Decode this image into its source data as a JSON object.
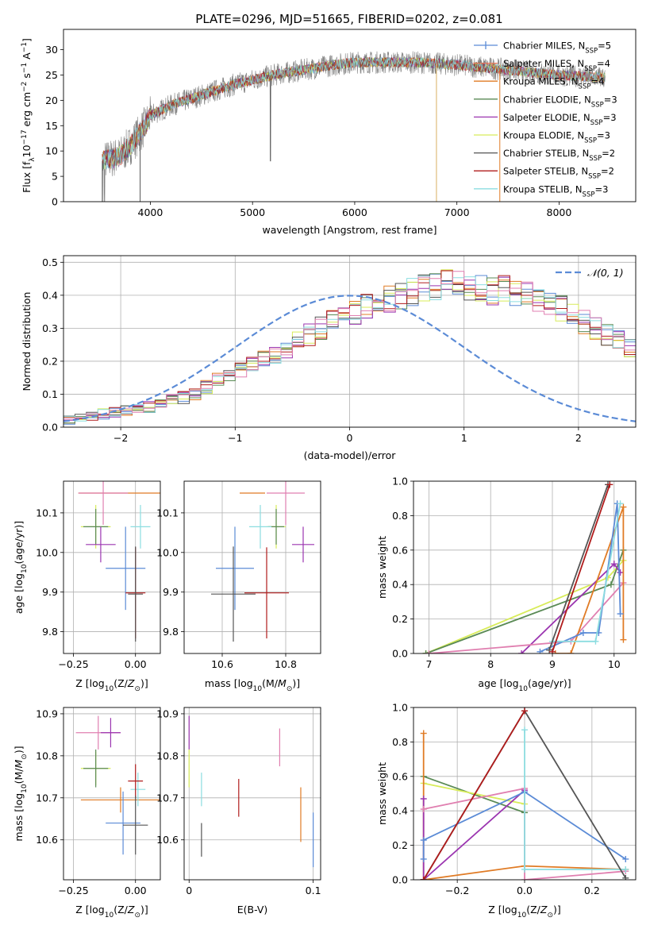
{
  "figure_title": "PLATE=0296, MJD=51665, FIBERID=0202, z=0.081",
  "colors": {
    "chabrier_miles": "#5b8bd6",
    "salpeter_miles": "#e87a5e",
    "kroupa_miles": "#e07b25",
    "chabrier_elodie": "#5a8a55",
    "salpeter_elodie": "#9b35b0",
    "kroupa_elodie": "#d8ec5a",
    "chabrier_stelib": "#555555",
    "salpeter_stelib": "#b01c1c",
    "kroupa_stelib": "#8cdde0",
    "pink": "#e07fb0",
    "gaussian": "#5b8bd6",
    "data": "#808080"
  },
  "chart_data": [
    {
      "type": "line",
      "id": "spectrum",
      "xlabel": "wavelength [Angstrom, rest frame]",
      "ylabel": "Flux [f_λ10^-17 erg cm^-2 s^-1 A^-1]",
      "xlim": [
        3150,
        8750
      ],
      "ylim": [
        0,
        34
      ],
      "xticks": [
        4000,
        5000,
        6000,
        7000,
        8000
      ],
      "yticks": [
        0,
        5,
        10,
        15,
        20,
        25,
        30
      ],
      "grid": false,
      "legend_position": "right",
      "legend": [
        {
          "label": "Chabrier MILES, N",
          "sub": "SSP",
          "n": "=5",
          "color": "#5b8bd6",
          "marker": true
        },
        {
          "label": "Salpeter MILES, N",
          "sub": "SSP",
          "n": "=4",
          "color": "#e87a5e",
          "marker": false
        },
        {
          "label": "Kroupa MILES, N",
          "sub": "SSP",
          "n": "=4",
          "color": "#e07b25",
          "marker": false
        },
        {
          "label": "Chabrier ELODIE, N",
          "sub": "SSP",
          "n": "=3",
          "color": "#5a8a55",
          "marker": false
        },
        {
          "label": "Salpeter ELODIE, N",
          "sub": "SSP",
          "n": "=3",
          "color": "#9b35b0",
          "marker": false
        },
        {
          "label": "Kroupa ELODIE, N",
          "sub": "SSP",
          "n": "=3",
          "color": "#d8ec5a",
          "marker": false
        },
        {
          "label": "Chabrier STELIB, N",
          "sub": "SSP",
          "n": "=2",
          "color": "#555555",
          "marker": false
        },
        {
          "label": "Salpeter STELIB, N",
          "sub": "SSP",
          "n": "=2",
          "color": "#b01c1c",
          "marker": false
        },
        {
          "label": "Kroupa STELIB, N",
          "sub": "SSP",
          "n": "=3",
          "color": "#8cdde0",
          "marker": false
        }
      ],
      "continuum_points": [
        [
          3530,
          8
        ],
        [
          3700,
          9
        ],
        [
          3800,
          11
        ],
        [
          3950,
          15
        ],
        [
          4000,
          17
        ],
        [
          4200,
          19
        ],
        [
          4500,
          21
        ],
        [
          4800,
          23
        ],
        [
          5000,
          24
        ],
        [
          5200,
          25
        ],
        [
          5500,
          26
        ],
        [
          5800,
          27
        ],
        [
          6000,
          27.5
        ],
        [
          6300,
          27.5
        ],
        [
          6600,
          27.5
        ],
        [
          7000,
          27
        ],
        [
          7500,
          26
        ],
        [
          8000,
          25
        ],
        [
          8450,
          24.5
        ]
      ],
      "drops": [
        [
          5175,
          8
        ],
        [
          6800,
          0
        ],
        [
          7420,
          0
        ],
        [
          3530,
          0
        ],
        [
          3900,
          0
        ]
      ]
    },
    {
      "type": "bar",
      "id": "residual_hist",
      "xlabel": "(data-model)/error",
      "ylabel": "Normed distribution",
      "xlim": [
        -2.5,
        2.5
      ],
      "ylim": [
        0,
        0.52
      ],
      "xticks": [
        -2,
        -1,
        0,
        1,
        2
      ],
      "xtick_labels": [
        "−2",
        "−1",
        "0",
        "1",
        "2"
      ],
      "yticks": [
        0.0,
        0.1,
        0.2,
        0.3,
        0.4,
        0.5
      ],
      "legend_label": "𝒩(0, 1)",
      "legend_position": "top-right",
      "bin_width": 0.1,
      "bin_start": -2.5,
      "base_values": [
        0.025,
        0.03,
        0.035,
        0.04,
        0.045,
        0.05,
        0.055,
        0.06,
        0.07,
        0.08,
        0.09,
        0.1,
        0.12,
        0.14,
        0.15,
        0.17,
        0.19,
        0.21,
        0.22,
        0.24,
        0.26,
        0.28,
        0.3,
        0.32,
        0.34,
        0.35,
        0.37,
        0.38,
        0.39,
        0.4,
        0.41,
        0.42,
        0.43,
        0.44,
        0.44,
        0.42,
        0.42,
        0.41,
        0.42,
        0.41,
        0.4,
        0.39,
        0.37,
        0.36,
        0.34,
        0.32,
        0.3,
        0.28,
        0.26,
        0.24,
        0.22,
        0.2,
        0.18,
        0.16,
        0.14,
        0.12,
        0.1,
        0.08,
        0.07,
        0.06,
        0.05,
        0.045,
        0.04,
        0.035,
        0.03,
        0.025,
        0.02,
        0.018,
        0.015,
        0.012,
        0.01,
        0.008,
        0.006,
        0.005,
        0.004
      ]
    },
    {
      "type": "scatter",
      "id": "age_vs_Z",
      "xlabel": "Z [log10(Z/Z⊙)]",
      "ylabel": "age  [log10(age/yr)]",
      "xlim": [
        -0.29,
        0.1
      ],
      "ylim": [
        9.745,
        10.18
      ],
      "xticks": [
        -0.25,
        0.0
      ],
      "xtick_labels": [
        "−0.25",
        "0.00"
      ],
      "yticks": [
        9.8,
        9.9,
        10.0,
        10.1
      ],
      "grid": true,
      "points": [
        {
          "color": "#e07b25",
          "x": 0.01,
          "xerr": 0.24,
          "y": 10.15,
          "yerr": 0.0
        },
        {
          "color": "#e07fb0",
          "x": -0.13,
          "xerr": 0.1,
          "y": 10.15,
          "yerr": 0.08
        },
        {
          "color": "#d8ec5a",
          "x": -0.16,
          "xerr": 0.06,
          "y": 10.065,
          "yerr": 0.055
        },
        {
          "color": "#5a8a55",
          "x": -0.16,
          "xerr": 0.05,
          "y": 10.065,
          "yerr": 0.045
        },
        {
          "color": "#9b35b0",
          "x": -0.14,
          "xerr": 0.06,
          "y": 10.02,
          "yerr": 0.045
        },
        {
          "color": "#8cdde0",
          "x": 0.02,
          "xerr": 0.04,
          "y": 10.065,
          "yerr": 0.055
        },
        {
          "color": "#5b8bd6",
          "x": -0.04,
          "xerr": 0.08,
          "y": 9.96,
          "yerr": 0.105
        },
        {
          "color": "#b01c1c",
          "x": 0.0,
          "xerr": 0.04,
          "y": 9.898,
          "yerr": 0.115
        },
        {
          "color": "#555555",
          "x": 0.0,
          "xerr": 0.03,
          "y": 9.895,
          "yerr": 0.12
        }
      ]
    },
    {
      "type": "scatter",
      "id": "age_vs_mass",
      "xlabel": "mass [log10(M/M⊙)]",
      "ylabel": "",
      "xlim": [
        10.48,
        10.91
      ],
      "ylim": [
        9.745,
        10.18
      ],
      "xticks": [
        10.6,
        10.8
      ],
      "yticks": [
        9.8,
        9.9,
        10.0,
        10.1
      ],
      "grid": true,
      "points": [
        {
          "color": "#e07b25",
          "x": 10.695,
          "xerr": 0.04,
          "y": 10.15,
          "yerr": 0.0
        },
        {
          "color": "#e07fb0",
          "x": 10.8,
          "xerr": 0.06,
          "y": 10.15,
          "yerr": 0.08
        },
        {
          "color": "#d8ec5a",
          "x": 10.77,
          "xerr": 0.03,
          "y": 10.065,
          "yerr": 0.055
        },
        {
          "color": "#5a8a55",
          "x": 10.77,
          "xerr": 0.025,
          "y": 10.065,
          "yerr": 0.045
        },
        {
          "color": "#9b35b0",
          "x": 10.855,
          "xerr": 0.035,
          "y": 10.02,
          "yerr": 0.045
        },
        {
          "color": "#8cdde0",
          "x": 10.72,
          "xerr": 0.035,
          "y": 10.065,
          "yerr": 0.055
        },
        {
          "color": "#5b8bd6",
          "x": 10.64,
          "xerr": 0.06,
          "y": 9.96,
          "yerr": 0.105
        },
        {
          "color": "#b01c1c",
          "x": 10.74,
          "xerr": 0.07,
          "y": 9.898,
          "yerr": 0.115
        },
        {
          "color": "#555555",
          "x": 10.635,
          "xerr": 0.07,
          "y": 9.895,
          "yerr": 0.12
        }
      ]
    },
    {
      "type": "line",
      "id": "weight_vs_age",
      "xlabel": "age  [log10(age/yr)]",
      "ylabel": "mass weight",
      "xlim": [
        6.75,
        10.35
      ],
      "ylim": [
        0,
        1.0
      ],
      "xticks": [
        7,
        8,
        9,
        10
      ],
      "yticks": [
        0.0,
        0.2,
        0.4,
        0.6,
        0.8,
        1.0
      ],
      "grid": true,
      "series": [
        {
          "color": "#d8ec5a",
          "points": [
            [
              6.95,
              0.0
            ],
            [
              9.9,
              0.44
            ],
            [
              10.15,
              0.54
            ]
          ]
        },
        {
          "color": "#5a8a55",
          "points": [
            [
              6.95,
              0.0
            ],
            [
              9.95,
              0.4
            ],
            [
              10.15,
              0.6
            ]
          ]
        },
        {
          "color": "#9b35b0",
          "points": [
            [
              8.5,
              0.0
            ],
            [
              10.0,
              0.52
            ],
            [
              10.1,
              0.47
            ]
          ]
        },
        {
          "color": "#e07fb0",
          "points": [
            [
              7.0,
              0.0
            ],
            [
              9.3,
              0.07
            ],
            [
              10.15,
              0.41
            ]
          ]
        },
        {
          "color": "#e07b25",
          "points": [
            [
              9.05,
              0.0
            ],
            [
              9.3,
              0.0
            ],
            [
              10.15,
              0.85
            ],
            [
              10.15,
              0.08
            ]
          ]
        },
        {
          "color": "#5b8bd6",
          "points": [
            [
              8.8,
              0.01
            ],
            [
              9.5,
              0.12
            ],
            [
              9.75,
              0.12
            ],
            [
              10.05,
              0.87
            ],
            [
              10.1,
              0.23
            ]
          ]
        },
        {
          "color": "#8cdde0",
          "points": [
            [
              9.0,
              0.07
            ],
            [
              9.7,
              0.07
            ],
            [
              10.1,
              0.87
            ]
          ]
        },
        {
          "color": "#555555",
          "points": [
            [
              8.95,
              0.02
            ],
            [
              9.9,
              0.98
            ]
          ]
        },
        {
          "color": "#b01c1c",
          "points": [
            [
              9.0,
              0.01
            ],
            [
              9.93,
              0.98
            ]
          ]
        }
      ]
    },
    {
      "type": "scatter",
      "id": "mass_vs_Z",
      "xlabel": "Z [log10(Z/Z⊙)]",
      "ylabel": "mass [log10(M/M⊙)]",
      "xlim": [
        -0.29,
        0.1
      ],
      "ylim": [
        10.505,
        10.915
      ],
      "xticks": [
        -0.25,
        0.0
      ],
      "xtick_labels": [
        "−0.25",
        "0.00"
      ],
      "yticks": [
        10.6,
        10.7,
        10.8,
        10.9
      ],
      "grid": true,
      "points": [
        {
          "color": "#e07b25",
          "x": -0.06,
          "xerr": 0.16,
          "y": 10.695,
          "yerr": 0.03
        },
        {
          "color": "#e07fb0",
          "x": -0.15,
          "xerr": 0.09,
          "y": 10.855,
          "yerr": 0.04
        },
        {
          "color": "#9b35b0",
          "x": -0.1,
          "xerr": 0.04,
          "y": 10.855,
          "yerr": 0.035
        },
        {
          "color": "#d8ec5a",
          "x": -0.16,
          "xerr": 0.06,
          "y": 10.77,
          "yerr": 0.04
        },
        {
          "color": "#5a8a55",
          "x": -0.16,
          "xerr": 0.05,
          "y": 10.77,
          "yerr": 0.045
        },
        {
          "color": "#8cdde0",
          "x": 0.01,
          "xerr": 0.03,
          "y": 10.72,
          "yerr": 0.04
        },
        {
          "color": "#5b8bd6",
          "x": -0.05,
          "xerr": 0.07,
          "y": 10.64,
          "yerr": 0.075
        },
        {
          "color": "#b01c1c",
          "x": 0.0,
          "xerr": 0.03,
          "y": 10.74,
          "yerr": 0.04
        },
        {
          "color": "#555555",
          "x": 0.0,
          "xerr": 0.05,
          "y": 10.635,
          "yerr": 0.07
        }
      ]
    },
    {
      "type": "scatter",
      "id": "mass_vs_ebv",
      "xlabel": "E(B-V)",
      "ylabel": "",
      "xlim": [
        -0.004,
        0.106
      ],
      "ylim": [
        10.505,
        10.915
      ],
      "xticks": [
        0.0,
        0.1
      ],
      "yticks": [
        10.6,
        10.7,
        10.8,
        10.9
      ],
      "grid": true,
      "points": [
        {
          "color": "#9b35b0",
          "x": 0.0,
          "y": 10.855,
          "yerr": 0.04
        },
        {
          "color": "#d8ec5a",
          "x": 0.0,
          "y": 10.77,
          "yerr": 0.045
        },
        {
          "color": "#8cdde0",
          "x": 0.01,
          "y": 10.72,
          "yerr": 0.04
        },
        {
          "color": "#555555",
          "x": 0.01,
          "y": 10.6,
          "yerr": 0.04
        },
        {
          "color": "#b01c1c",
          "x": 0.04,
          "y": 10.7,
          "yerr": 0.045
        },
        {
          "color": "#e07fb0",
          "x": 0.073,
          "y": 10.82,
          "yerr": 0.045
        },
        {
          "color": "#e07b25",
          "x": 0.09,
          "y": 10.66,
          "yerr": 0.065
        },
        {
          "color": "#5b8bd6",
          "x": 0.1,
          "y": 10.6,
          "yerr": 0.065
        }
      ]
    },
    {
      "type": "line",
      "id": "weight_vs_Z",
      "xlabel": "Z [log10(Z/Z⊙)]",
      "ylabel": "mass weight",
      "xlim": [
        -0.33,
        0.33
      ],
      "ylim": [
        0,
        1.0
      ],
      "xticks": [
        -0.2,
        0.0,
        0.2
      ],
      "xtick_labels": [
        "−0.2",
        "0.0",
        "0.2"
      ],
      "yticks": [
        0.0,
        0.2,
        0.4,
        0.6,
        0.8,
        1.0
      ],
      "grid": true,
      "series": [
        {
          "color": "#5a8a55",
          "points": [
            [
              -0.3,
              0.6
            ],
            [
              0.0,
              0.39
            ]
          ]
        },
        {
          "color": "#d8ec5a",
          "points": [
            [
              -0.3,
              0.56
            ],
            [
              0.0,
              0.44
            ]
          ]
        },
        {
          "color": "#e07b25",
          "points": [
            [
              -0.3,
              0.85
            ],
            [
              -0.3,
              0.0
            ],
            [
              0.0,
              0.08
            ],
            [
              0.3,
              0.06
            ]
          ]
        },
        {
          "color": "#9b35b0",
          "points": [
            [
              -0.3,
              0.47
            ],
            [
              -0.3,
              0.0
            ],
            [
              0.0,
              0.52
            ]
          ]
        },
        {
          "color": "#e07fb0",
          "points": [
            [
              -0.3,
              0.41
            ],
            [
              0.0,
              0.53
            ],
            [
              0.0,
              0.0
            ],
            [
              0.3,
              0.05
            ]
          ]
        },
        {
          "color": "#5b8bd6",
          "points": [
            [
              -0.3,
              0.12
            ],
            [
              -0.3,
              0.23
            ],
            [
              0.0,
              0.51
            ],
            [
              0.3,
              0.12
            ]
          ]
        },
        {
          "color": "#8cdde0",
          "points": [
            [
              0.0,
              0.87
            ],
            [
              0.0,
              0.06
            ],
            [
              0.3,
              0.06
            ]
          ]
        },
        {
          "color": "#555555",
          "points": [
            [
              -0.3,
              0.0
            ],
            [
              0.0,
              0.98
            ],
            [
              0.3,
              0.01
            ]
          ]
        },
        {
          "color": "#b01c1c",
          "points": [
            [
              -0.3,
              0.0
            ],
            [
              0.0,
              0.98
            ]
          ]
        }
      ]
    }
  ]
}
